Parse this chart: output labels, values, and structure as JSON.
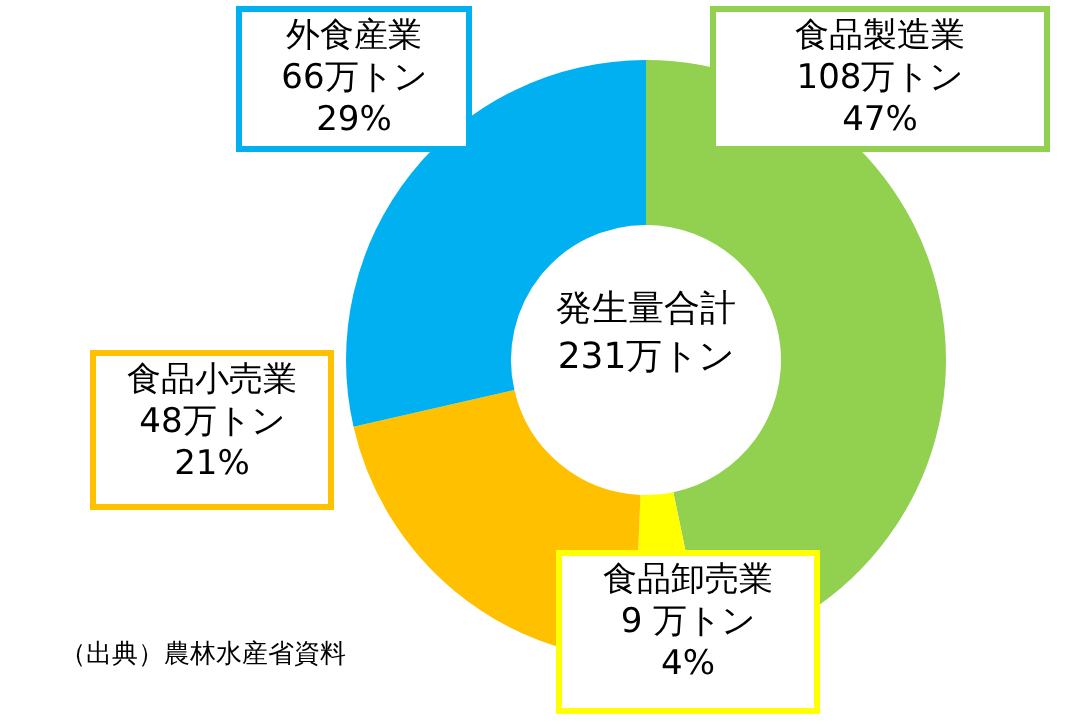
{
  "chart_data": {
    "type": "donut",
    "categories": [
      "食品製造業",
      "食品卸売業",
      "食品小売業",
      "外食産業"
    ],
    "values": [
      108,
      9,
      48,
      66
    ],
    "value_labels": [
      "108万トン\n47%",
      "9 万トン\n4%",
      "48万トン\n21%",
      "66万トン\n29%"
    ],
    "colors": [
      "#92d050",
      "#ffff00",
      "#ffc000",
      "#00b0f0"
    ],
    "annotations": [
      "発生量合計\n231万トン",
      "（出典）農林水産省資料"
    ],
    "legend": false
  }
}
